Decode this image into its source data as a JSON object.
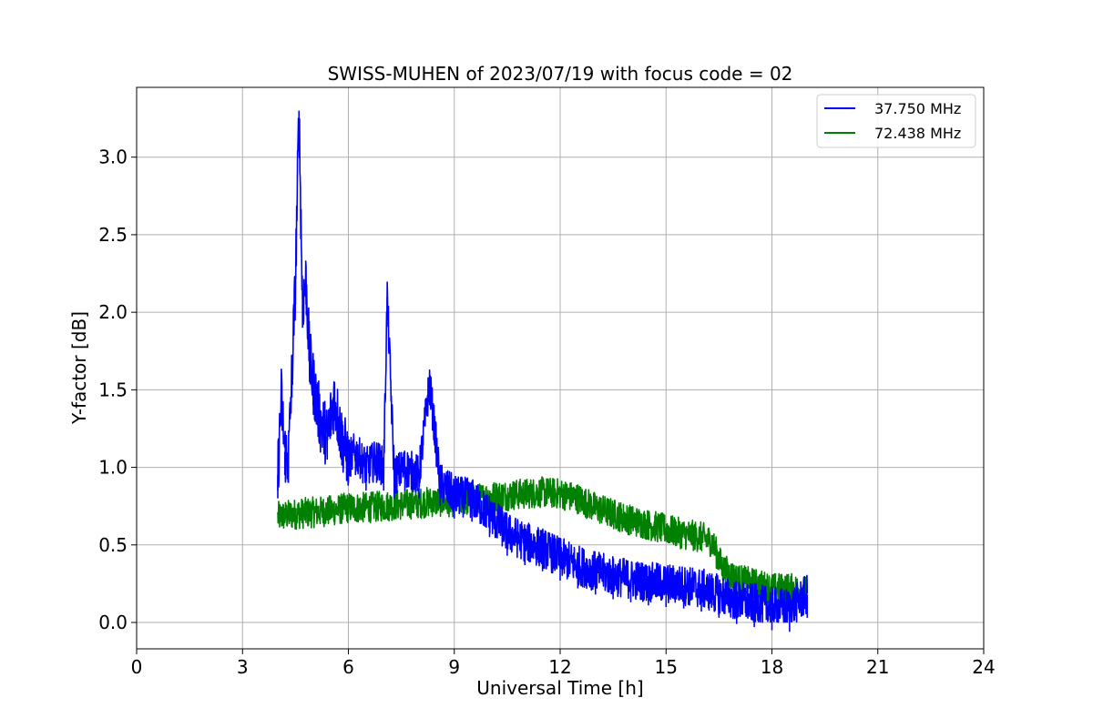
{
  "chart_data": {
    "type": "line",
    "title": "SWISS-MUHEN of 2023/07/19 with focus code = 02",
    "xlabel": "Universal Time [h]",
    "ylabel": "Y-factor [dB]",
    "xlim": [
      0,
      24
    ],
    "ylim": [
      -0.17,
      3.45
    ],
    "xticks": [
      0,
      3,
      6,
      9,
      12,
      15,
      18,
      21,
      24
    ],
    "xtick_labels": [
      "0",
      "3",
      "6",
      "9",
      "12",
      "15",
      "18",
      "21",
      "24"
    ],
    "yticks": [
      0.0,
      0.5,
      1.0,
      1.5,
      2.0,
      2.5,
      3.0
    ],
    "ytick_labels": [
      "0.0",
      "0.5",
      "1.0",
      "1.5",
      "2.0",
      "2.5",
      "3.0"
    ],
    "grid": true,
    "legend_position": "top-right",
    "series": [
      {
        "name": "37.750 MHz",
        "color": "#0000ff",
        "x": [
          4.0,
          4.1,
          4.2,
          4.3,
          4.4,
          4.5,
          4.6,
          4.7,
          4.8,
          4.9,
          5.0,
          5.2,
          5.4,
          5.6,
          5.8,
          6.0,
          6.2,
          6.5,
          6.8,
          7.0,
          7.1,
          7.3,
          7.6,
          8.0,
          8.3,
          8.6,
          9.0,
          9.5,
          10.0,
          10.5,
          11.0,
          11.5,
          12.0,
          12.5,
          13.0,
          13.5,
          14.0,
          14.5,
          15.0,
          15.5,
          16.0,
          16.5,
          17.0,
          17.5,
          18.0,
          18.5,
          19.0
        ],
        "y": [
          0.95,
          1.45,
          1.1,
          1.05,
          1.6,
          2.2,
          3.3,
          2.05,
          2.2,
          1.7,
          1.55,
          1.3,
          1.2,
          1.45,
          1.2,
          1.05,
          1.1,
          1.0,
          1.05,
          1.0,
          2.1,
          0.95,
          1.0,
          0.95,
          1.55,
          0.9,
          0.82,
          0.8,
          0.7,
          0.58,
          0.52,
          0.48,
          0.42,
          0.37,
          0.33,
          0.3,
          0.28,
          0.26,
          0.25,
          0.24,
          0.22,
          0.18,
          0.14,
          0.12,
          0.1,
          0.09,
          0.18
        ]
      },
      {
        "name": "72.438 MHz",
        "color": "#008000",
        "x": [
          4.0,
          4.5,
          5.0,
          5.5,
          6.0,
          6.5,
          7.0,
          7.5,
          8.0,
          8.5,
          9.0,
          9.5,
          10.0,
          10.5,
          11.0,
          11.5,
          12.0,
          12.5,
          13.0,
          13.5,
          14.0,
          14.5,
          15.0,
          15.5,
          16.0,
          16.3,
          16.6,
          17.0,
          17.5,
          18.0,
          18.5,
          19.0
        ],
        "y": [
          0.68,
          0.7,
          0.71,
          0.72,
          0.74,
          0.74,
          0.75,
          0.76,
          0.77,
          0.78,
          0.78,
          0.79,
          0.81,
          0.82,
          0.83,
          0.84,
          0.83,
          0.8,
          0.74,
          0.7,
          0.66,
          0.63,
          0.6,
          0.57,
          0.55,
          0.52,
          0.35,
          0.28,
          0.25,
          0.22,
          0.22,
          0.2
        ]
      }
    ]
  }
}
